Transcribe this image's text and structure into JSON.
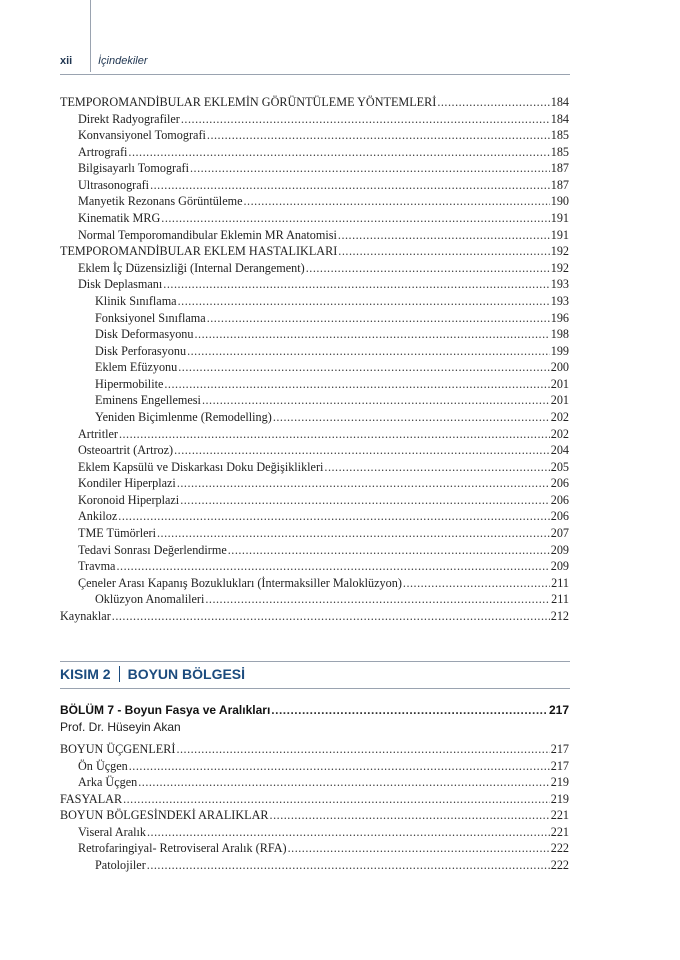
{
  "header": {
    "page_number": "xii",
    "title": "İçindekiler"
  },
  "toc1": [
    {
      "level": 0,
      "title": "TEMPOROMANDİBULAR EKLEMİN GÖRÜNTÜLEME YÖNTEMLERİ",
      "page": "184"
    },
    {
      "level": 1,
      "title": "Direkt Radyografiler",
      "page": "184"
    },
    {
      "level": 1,
      "title": "Konvansiyonel Tomografi",
      "page": "185"
    },
    {
      "level": 1,
      "title": "Artrografi",
      "page": "185"
    },
    {
      "level": 1,
      "title": "Bilgisayarlı Tomografi",
      "page": "187"
    },
    {
      "level": 1,
      "title": "Ultrasonografi",
      "page": "187"
    },
    {
      "level": 1,
      "title": "Manyetik Rezonans Görüntüleme",
      "page": "190"
    },
    {
      "level": 1,
      "title": "Kinematik MRG",
      "page": "191"
    },
    {
      "level": 1,
      "title": "Normal Temporomandibular Eklemin MR Anatomisi",
      "page": "191"
    },
    {
      "level": 0,
      "title": "TEMPOROMANDİBULAR EKLEM HASTALIKLARI",
      "page": "192"
    },
    {
      "level": 1,
      "title": "Eklem İç Düzensizliği (Internal Derangement)",
      "page": "192"
    },
    {
      "level": 1,
      "title": "Disk Deplasmanı",
      "page": "193"
    },
    {
      "level": 2,
      "title": "Klinik Sınıflama",
      "page": "193"
    },
    {
      "level": 2,
      "title": "Fonksiyonel Sınıflama",
      "page": "196"
    },
    {
      "level": 2,
      "title": "Disk Deformasyonu",
      "page": "198"
    },
    {
      "level": 2,
      "title": "Disk Perforasyonu",
      "page": "199"
    },
    {
      "level": 2,
      "title": "Eklem Efüzyonu",
      "page": "200"
    },
    {
      "level": 2,
      "title": "Hipermobilite",
      "page": "201"
    },
    {
      "level": 2,
      "title": "Eminens Engellemesi",
      "page": "201"
    },
    {
      "level": 2,
      "title": "Yeniden Biçimlenme (Remodelling)",
      "page": "202"
    },
    {
      "level": 1,
      "title": "Artritler",
      "page": "202"
    },
    {
      "level": 1,
      "title": "Osteoartrit (Artroz)",
      "page": "204"
    },
    {
      "level": 1,
      "title": "Eklem Kapsülü ve Diskarkası Doku Değişiklikleri",
      "page": "205"
    },
    {
      "level": 1,
      "title": "Kondiler Hiperplazi",
      "page": "206"
    },
    {
      "level": 1,
      "title": "Koronoid Hiperplazi",
      "page": "206"
    },
    {
      "level": 1,
      "title": "Ankiloz",
      "page": "206"
    },
    {
      "level": 1,
      "title": "TME Tümörleri",
      "page": "207"
    },
    {
      "level": 1,
      "title": "Tedavi Sonrası Değerlendirme",
      "page": "209"
    },
    {
      "level": 1,
      "title": "Travma",
      "page": "209"
    },
    {
      "level": 1,
      "title": "Çeneler Arası Kapanış Bozuklukları (İntermaksiller Maloklüzyon)",
      "page": "211"
    },
    {
      "level": 2,
      "title": "Oklüzyon Anomalileri",
      "page": "211"
    },
    {
      "level": 0,
      "title": "Kaynaklar",
      "page": "212"
    }
  ],
  "part": {
    "label": "KISIM 2",
    "title": "BOYUN BÖLGESİ"
  },
  "chapter": {
    "title": "BÖLÜM 7 - Boyun Fasya ve Aralıkları",
    "page": "217",
    "author": "Prof. Dr. Hüseyin Akan"
  },
  "toc2": [
    {
      "level": 0,
      "title": "BOYUN ÜÇGENLERİ",
      "page": "217"
    },
    {
      "level": 1,
      "title": "Ön Üçgen",
      "page": "217"
    },
    {
      "level": 1,
      "title": "Arka Üçgen",
      "page": "219"
    },
    {
      "level": 0,
      "title": "FASYALAR",
      "page": "219"
    },
    {
      "level": 0,
      "title": "BOYUN BÖLGESİNDEKİ ARALIKLAR",
      "page": "221"
    },
    {
      "level": 1,
      "title": "Viseral Aralık",
      "page": "221"
    },
    {
      "level": 1,
      "title": "Retrofaringiyal- Retroviseral Aralık (RFA)",
      "page": "222"
    },
    {
      "level": 2,
      "title": "Patolojiler",
      "page": "222"
    }
  ],
  "colors": {
    "accent": "#1b4b7e",
    "rule": "#9aa3b0"
  }
}
